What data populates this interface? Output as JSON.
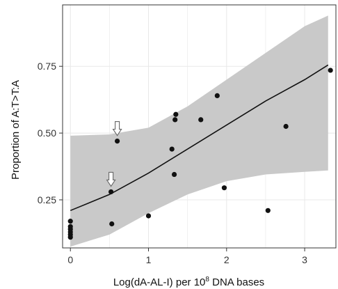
{
  "chart_data": {
    "type": "scatter",
    "title": "",
    "xlabel_main": "Log(dA-AL-I) per 10",
    "xlabel_sup": "8",
    "xlabel_tail": " DNA bases",
    "ylabel": "Proportion of A:T>T:A",
    "xlim": [
      -0.1,
      3.4
    ],
    "ylim": [
      0.07,
      0.98
    ],
    "x_ticks": [
      0,
      1,
      2,
      3
    ],
    "x_tick_labels": [
      "0",
      "1",
      "2",
      "3"
    ],
    "y_ticks": [
      0.25,
      0.5,
      0.75
    ],
    "y_tick_labels": [
      "0.25",
      "0.50",
      "0.75"
    ],
    "grid": true,
    "points": [
      {
        "x": 0.0,
        "y": 0.17
      },
      {
        "x": 0.0,
        "y": 0.15
      },
      {
        "x": 0.0,
        "y": 0.14
      },
      {
        "x": 0.0,
        "y": 0.13
      },
      {
        "x": 0.0,
        "y": 0.12
      },
      {
        "x": 0.0,
        "y": 0.11
      },
      {
        "x": 0.52,
        "y": 0.28
      },
      {
        "x": 0.53,
        "y": 0.16
      },
      {
        "x": 0.6,
        "y": 0.47
      },
      {
        "x": 1.0,
        "y": 0.19
      },
      {
        "x": 1.3,
        "y": 0.44
      },
      {
        "x": 1.33,
        "y": 0.345
      },
      {
        "x": 1.34,
        "y": 0.55
      },
      {
        "x": 1.35,
        "y": 0.57
      },
      {
        "x": 1.67,
        "y": 0.55
      },
      {
        "x": 1.88,
        "y": 0.64
      },
      {
        "x": 1.97,
        "y": 0.295
      },
      {
        "x": 2.53,
        "y": 0.21
      },
      {
        "x": 2.76,
        "y": 0.525
      },
      {
        "x": 3.33,
        "y": 0.735
      }
    ],
    "fit_line": [
      [
        0.0,
        0.21
      ],
      [
        0.5,
        0.27
      ],
      [
        1.0,
        0.35
      ],
      [
        1.5,
        0.44
      ],
      [
        2.0,
        0.53
      ],
      [
        2.5,
        0.62
      ],
      [
        3.0,
        0.7
      ],
      [
        3.3,
        0.755
      ]
    ],
    "ci_upper": [
      [
        0.0,
        0.49
      ],
      [
        0.5,
        0.495
      ],
      [
        1.0,
        0.52
      ],
      [
        1.5,
        0.6
      ],
      [
        2.0,
        0.7
      ],
      [
        2.5,
        0.8
      ],
      [
        3.0,
        0.9
      ],
      [
        3.3,
        0.94
      ]
    ],
    "ci_lower": [
      [
        0.0,
        0.075
      ],
      [
        0.5,
        0.12
      ],
      [
        1.0,
        0.2
      ],
      [
        1.5,
        0.27
      ],
      [
        2.0,
        0.32
      ],
      [
        2.5,
        0.345
      ],
      [
        3.0,
        0.355
      ],
      [
        3.3,
        0.36
      ]
    ],
    "arrow_points": [
      {
        "x": 0.6,
        "y": 0.47
      },
      {
        "x": 0.52,
        "y": 0.28
      }
    ],
    "colors": {
      "panel_bg": "#ffffff",
      "grid": "#e8e8e8",
      "ci_band": "#c9c9c9",
      "line": "#111111",
      "point": "#111111",
      "arrow_fill": "#ffffff",
      "arrow_stroke": "#666666"
    }
  }
}
